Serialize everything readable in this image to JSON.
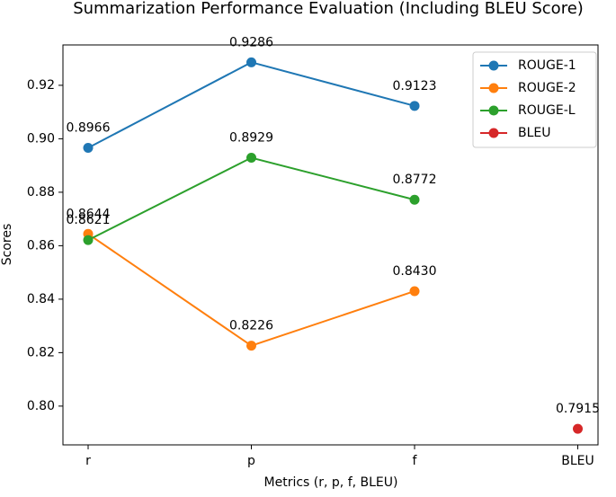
{
  "chart_data": {
    "type": "line",
    "title": "Summarization Performance Evaluation (Including BLEU Score)",
    "x_label": "Metrics (r, p, f, BLEU)",
    "y_label": "Scores",
    "categories": [
      "r",
      "p",
      "f",
      "BLEU"
    ],
    "series": [
      {
        "name": "ROUGE-1",
        "color": "#1f77b4",
        "values": [
          0.8966,
          0.9286,
          0.9123,
          null
        ],
        "value_labels": [
          "0.8966",
          "0.9286",
          "0.9123",
          null
        ]
      },
      {
        "name": "ROUGE-2",
        "color": "#ff7f0e",
        "values": [
          0.8644,
          0.8226,
          0.843,
          null
        ],
        "value_labels": [
          "0.8644",
          "0.8226",
          "0.8430",
          null
        ]
      },
      {
        "name": "ROUGE-L",
        "color": "#2ca02c",
        "values": [
          0.8621,
          0.8929,
          0.8772,
          null
        ],
        "value_labels": [
          "0.8621",
          "0.8929",
          "0.8772",
          null
        ]
      },
      {
        "name": "BLEU",
        "color": "#d62728",
        "values": [
          null,
          null,
          null,
          0.7915
        ],
        "value_labels": [
          null,
          null,
          null,
          "0.7915"
        ]
      }
    ],
    "ylim": [
      0.7855,
      0.9351
    ],
    "yticks": [
      {
        "value": 0.8,
        "label": "0.80"
      },
      {
        "value": 0.82,
        "label": "0.82"
      },
      {
        "value": 0.84,
        "label": "0.84"
      },
      {
        "value": 0.86,
        "label": "0.86"
      },
      {
        "value": 0.88,
        "label": "0.88"
      },
      {
        "value": 0.9,
        "label": "0.90"
      },
      {
        "value": 0.92,
        "label": "0.92"
      }
    ],
    "legend": "upper right"
  }
}
